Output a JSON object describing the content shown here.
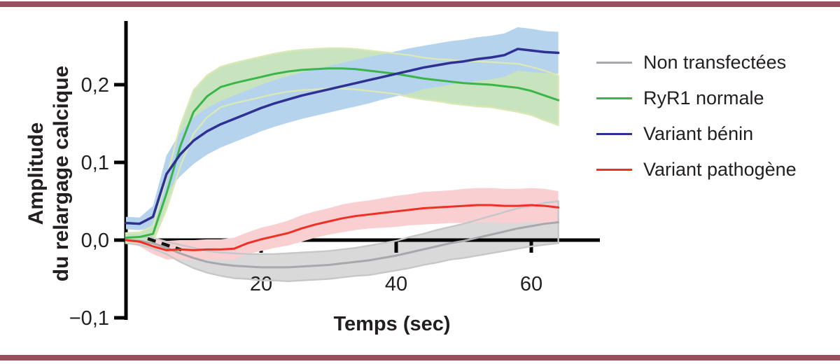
{
  "figure": {
    "accent_bar_color": "#9b4e5e",
    "background_color": "#ffffff",
    "text_color": "#231f20",
    "axis_color": "#000000"
  },
  "chart_data": {
    "type": "line",
    "title": "",
    "xlabel": "Temps (sec)",
    "ylabel": "Amplitude du relargage calcique",
    "ylabel_lines": [
      "Amplitude",
      "du relargage calcique"
    ],
    "grid": false,
    "legend_position": "right",
    "x_axis": {
      "min": 0,
      "max": 70,
      "ticks": [
        {
          "value": 20,
          "label": "20"
        },
        {
          "value": 40,
          "label": "40"
        },
        {
          "value": 60,
          "label": "60"
        }
      ]
    },
    "y_axis": {
      "min": -0.1,
      "max": 0.28,
      "ticks": [
        {
          "value": 0.2,
          "label": "0,2"
        },
        {
          "value": 0.1,
          "label": "0,1"
        },
        {
          "value": 0.0,
          "label": "0,0"
        },
        {
          "value": -0.1,
          "label": "−0,1"
        }
      ]
    },
    "x": [
      0,
      2,
      4,
      6,
      8,
      10,
      12,
      14,
      16,
      18,
      20,
      22,
      24,
      26,
      28,
      30,
      32,
      34,
      36,
      38,
      40,
      42,
      44,
      46,
      48,
      50,
      52,
      54,
      56,
      58,
      60,
      62,
      64
    ],
    "series": [
      {
        "name": "Non transfectées",
        "slug": "non-transfectees",
        "line_color": "#a6a8ab",
        "band_color": "#d9d9d9",
        "band_edge_color": "#c6c7c9",
        "values": [
          0.0,
          -0.001,
          -0.004,
          -0.01,
          -0.017,
          -0.023,
          -0.028,
          -0.031,
          -0.033,
          -0.034,
          -0.035,
          -0.035,
          -0.035,
          -0.034,
          -0.033,
          -0.032,
          -0.03,
          -0.028,
          -0.026,
          -0.023,
          -0.02,
          -0.016,
          -0.012,
          -0.008,
          -0.004,
          -0.001,
          0.003,
          0.007,
          0.011,
          0.015,
          0.018,
          0.021,
          0.023
        ],
        "band_halfwidth": [
          0.004,
          0.005,
          0.007,
          0.008,
          0.011,
          0.013,
          0.014,
          0.015,
          0.016,
          0.016,
          0.017,
          0.017,
          0.018,
          0.018,
          0.018,
          0.018,
          0.018,
          0.018,
          0.019,
          0.019,
          0.019,
          0.02,
          0.02,
          0.021,
          0.021,
          0.022,
          0.023,
          0.024,
          0.025,
          0.026,
          0.026,
          0.027,
          0.027
        ]
      },
      {
        "name": "RyR1 normale",
        "slug": "ryr1-normale",
        "line_color": "#3bb54a",
        "band_color": "#c8e4bf",
        "band_edge_color": "#d9e8b4",
        "values": [
          0.003,
          0.004,
          0.008,
          0.06,
          0.12,
          0.165,
          0.185,
          0.197,
          0.202,
          0.206,
          0.21,
          0.214,
          0.217,
          0.219,
          0.22,
          0.221,
          0.221,
          0.22,
          0.218,
          0.216,
          0.214,
          0.211,
          0.208,
          0.206,
          0.204,
          0.202,
          0.201,
          0.2,
          0.198,
          0.196,
          0.192,
          0.186,
          0.18
        ],
        "band_halfwidth": [
          0.006,
          0.006,
          0.01,
          0.02,
          0.026,
          0.028,
          0.027,
          0.026,
          0.026,
          0.026,
          0.026,
          0.026,
          0.026,
          0.026,
          0.026,
          0.026,
          0.026,
          0.026,
          0.026,
          0.026,
          0.026,
          0.027,
          0.027,
          0.027,
          0.028,
          0.028,
          0.029,
          0.029,
          0.03,
          0.031,
          0.031,
          0.032,
          0.032
        ]
      },
      {
        "name": "Variant bénin",
        "slug": "variant-benin",
        "line_color": "#2e3192",
        "band_color": "#b5d3ed",
        "values": [
          0.022,
          0.021,
          0.03,
          0.085,
          0.11,
          0.128,
          0.14,
          0.149,
          0.156,
          0.163,
          0.17,
          0.176,
          0.181,
          0.186,
          0.19,
          0.194,
          0.198,
          0.202,
          0.206,
          0.21,
          0.214,
          0.218,
          0.222,
          0.225,
          0.228,
          0.23,
          0.233,
          0.235,
          0.238,
          0.246,
          0.244,
          0.242,
          0.241
        ],
        "band_halfwidth": [
          0.008,
          0.008,
          0.014,
          0.024,
          0.028,
          0.03,
          0.03,
          0.03,
          0.03,
          0.03,
          0.03,
          0.03,
          0.03,
          0.03,
          0.03,
          0.03,
          0.03,
          0.03,
          0.03,
          0.029,
          0.029,
          0.029,
          0.028,
          0.028,
          0.028,
          0.028,
          0.028,
          0.028,
          0.028,
          0.028,
          0.028,
          0.027,
          0.027
        ]
      },
      {
        "name": "Variant pathogène",
        "slug": "variant-pathogene",
        "line_color": "#ee3124",
        "band_color": "#f9cfd2",
        "values": [
          0.0,
          -0.002,
          -0.008,
          -0.013,
          -0.012,
          -0.013,
          -0.012,
          -0.012,
          -0.011,
          -0.004,
          0.001,
          0.005,
          0.009,
          0.015,
          0.02,
          0.024,
          0.028,
          0.031,
          0.033,
          0.035,
          0.037,
          0.039,
          0.041,
          0.042,
          0.043,
          0.044,
          0.045,
          0.045,
          0.044,
          0.044,
          0.045,
          0.044,
          0.042
        ],
        "band_halfwidth": [
          0.004,
          0.006,
          0.01,
          0.012,
          0.012,
          0.013,
          0.013,
          0.013,
          0.014,
          0.014,
          0.015,
          0.015,
          0.016,
          0.017,
          0.017,
          0.017,
          0.018,
          0.018,
          0.018,
          0.019,
          0.02,
          0.02,
          0.021,
          0.021,
          0.021,
          0.022,
          0.022,
          0.022,
          0.022,
          0.022,
          0.022,
          0.022,
          0.021
        ]
      }
    ]
  }
}
